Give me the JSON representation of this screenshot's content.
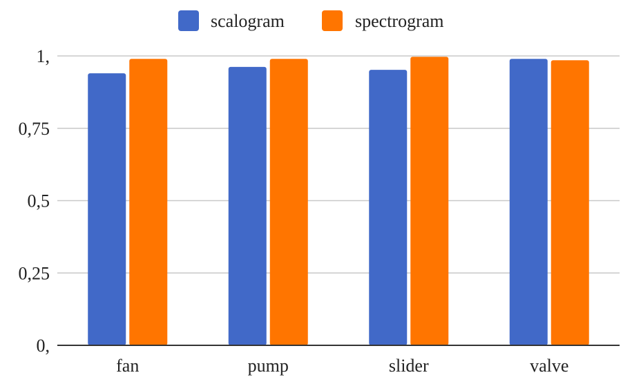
{
  "chart_data": {
    "type": "bar",
    "categories": [
      "fan",
      "pump",
      "slider",
      "valve"
    ],
    "series": [
      {
        "name": "scalogram",
        "values": [
          0.94,
          0.962,
          0.952,
          0.99
        ],
        "color": "#4169c8"
      },
      {
        "name": "spectrogram",
        "values": [
          0.99,
          0.99,
          0.997,
          0.985
        ],
        "color": "#ff7500"
      }
    ],
    "y_ticks": [
      0,
      0.25,
      0.5,
      0.75,
      1
    ],
    "y_tick_labels": [
      "0,",
      "0,25",
      "0,5",
      "0,75",
      "1,"
    ],
    "ylim": [
      0,
      1
    ],
    "grid": true,
    "legend_position": "top-center",
    "title": "",
    "xlabel": "",
    "ylabel": ""
  }
}
